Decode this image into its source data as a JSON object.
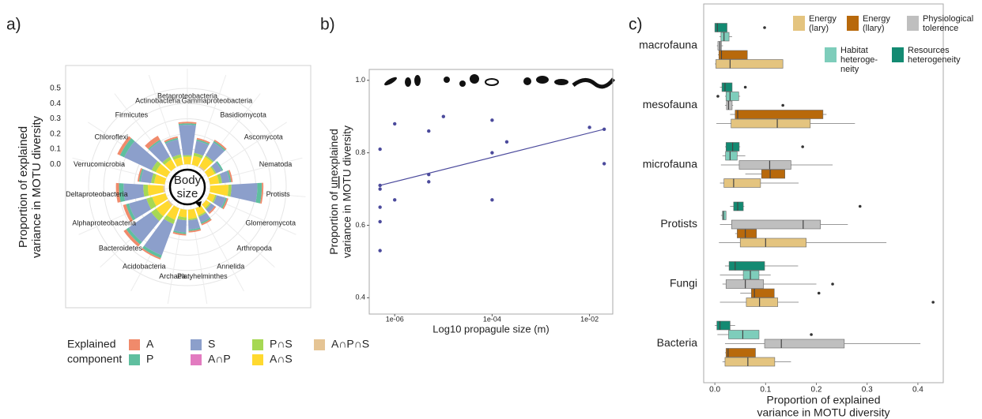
{
  "chart_data": [
    {
      "type": "polar_bar",
      "panel_label": "a)",
      "y_label": [
        "Proportion of explained",
        "variance in MOTU diversity"
      ],
      "center_label": [
        "Body",
        "size"
      ],
      "categories": [
        "Betaproteobacteria",
        "Gammaproteobacteria",
        "Basidiomycota",
        "Ascomycota",
        "Nematoda",
        "Protists",
        "Glomeromycota",
        "Arthropoda",
        "Annelida",
        "Platyhelminthes",
        "Archaea",
        "Acidobacteria",
        "Bacteroidetes",
        "Alphaproteobacteria",
        "Deltaproteobacteria",
        "Verrucomicrobia",
        "Chloroflexi",
        "Firmicutes",
        "Actinobacteria"
      ],
      "ylim": [
        -0.15,
        0.5
      ],
      "yticks": [
        {
          "value": 0,
          "label": "0.0"
        },
        0.1,
        0.2,
        0.3,
        0.4,
        0.5
      ],
      "legend_title": [
        "Explained",
        "component"
      ],
      "series": [
        {
          "name": "A",
          "color": "#f08a6b",
          "values": [
            0.01,
            0.01,
            0.01,
            0,
            0.01,
            0.01,
            0.01,
            0.01,
            0.01,
            0.01,
            0.01,
            0.01,
            0.02,
            0.02,
            0.02,
            0.01,
            0.02,
            0.03,
            0.01
          ]
        },
        {
          "name": "P",
          "color": "#5fbf9f",
          "values": [
            0.01,
            0.01,
            0.01,
            0.01,
            0.01,
            0.03,
            0.01,
            0,
            0.01,
            0.01,
            0.01,
            0.02,
            0.02,
            0.02,
            0.03,
            0.01,
            0.03,
            0.01,
            0.01
          ]
        },
        {
          "name": "S",
          "color": "#8c9fcb",
          "values": [
            0.2,
            0.08,
            0.1,
            0.04,
            0.05,
            0.17,
            0.06,
            0.03,
            0.04,
            0.06,
            0.08,
            0.22,
            0.18,
            0.12,
            0.13,
            0.07,
            0.2,
            0.12,
            0.1
          ]
        },
        {
          "name": "A∩P",
          "color": "#e27bc0",
          "values": [
            0,
            0,
            0,
            0,
            0,
            0,
            0,
            0,
            0,
            0,
            0,
            0,
            0,
            0,
            0,
            0,
            0,
            0,
            0
          ]
        },
        {
          "name": "P∩S",
          "color": "#a6d854",
          "values": [
            0.01,
            0.02,
            0.01,
            0.01,
            0.02,
            0.02,
            0.01,
            0.01,
            0.01,
            0.01,
            0.02,
            0.03,
            0.04,
            0.04,
            0.03,
            0.02,
            0.03,
            0.02,
            0.02
          ]
        },
        {
          "name": "A∩S",
          "color": "#ffd92f",
          "values": [
            0.05,
            0.06,
            0.07,
            0.05,
            0.06,
            0.12,
            0.04,
            0.03,
            0.05,
            0.06,
            0.05,
            0.08,
            0.09,
            0.09,
            0.1,
            0.07,
            0.08,
            0.06,
            0.05
          ]
        },
        {
          "name": "A∩P∩S",
          "color": "#e5c494",
          "values": [
            0,
            0,
            0.01,
            0,
            0,
            0,
            0,
            0,
            0,
            0,
            0,
            0,
            0.01,
            0,
            0.01,
            0,
            0,
            0,
            0
          ]
        }
      ]
    },
    {
      "type": "scatter",
      "panel_label": "b)",
      "x_label": "Log10 propagule size (m)",
      "y_label": {
        "before": "Proportion of ",
        "underlined": "un",
        "after": "explained",
        "line2": "variance in MOTU diversity"
      },
      "log_x": true,
      "color": "#4b4a9c",
      "x": [
        5e-07,
        5e-07,
        5e-07,
        5e-07,
        5e-07,
        5e-07,
        1e-06,
        1e-06,
        5e-06,
        5e-06,
        5e-06,
        1e-05,
        0.0001,
        0.0001,
        0.0001,
        0.0002,
        0.01,
        0.02,
        0.02
      ],
      "values": [
        0.81,
        0.71,
        0.7,
        0.65,
        0.61,
        0.53,
        0.67,
        0.88,
        0.74,
        0.72,
        0.86,
        0.9,
        0.89,
        0.8,
        0.67,
        0.83,
        0.87,
        0.865,
        0.77
      ],
      "fit": {
        "x": [
          5e-07,
          0.02
        ],
        "values": [
          0.71,
          0.865
        ]
      },
      "xlim": [
        3e-07,
        0.03
      ],
      "ylim": [
        0.355,
        1.03
      ],
      "xticks": [
        {
          "value": 1e-06,
          "label": "1e-06"
        },
        {
          "value": 0.0001,
          "label": "1e-04"
        },
        {
          "value": 0.01,
          "label": "1e-02"
        }
      ],
      "yticks": [
        0.4,
        0.6,
        0.8,
        {
          "value": 1,
          "label": "1.0"
        }
      ]
    },
    {
      "type": "boxplot",
      "panel_label": "c)",
      "x_label": [
        "Proportion of explained",
        "variance in MOTU diversity"
      ],
      "categories": [
        "macrofauna",
        "mesofauna",
        "microfauna",
        "Protists",
        "Fungi",
        "Bacteria"
      ],
      "xlim": [
        -0.022,
        0.45
      ],
      "xticks": [
        {
          "value": 0,
          "label": "0.0"
        },
        0.1,
        0.2,
        0.3,
        0.4
      ],
      "series": [
        {
          "name": [
            "Resources",
            "heterogeneity"
          ],
          "color": "#138a72",
          "boxes": [
            {
              "low": 0,
              "q1": 0,
              "median": 0.005,
              "q3": 0.024,
              "high": 0.024,
              "outliers": [
                0.098
              ]
            },
            {
              "low": 0.01,
              "q1": 0.014,
              "median": 0.02,
              "q3": 0.034,
              "high": 0.034,
              "outliers": [
                0.06
              ]
            },
            {
              "low": 0.02,
              "q1": 0.022,
              "median": 0.035,
              "q3": 0.048,
              "high": 0.05,
              "outliers": [
                0.173
              ]
            },
            {
              "low": 0.03,
              "q1": 0.037,
              "median": 0.045,
              "q3": 0.056,
              "high": 0.058,
              "outliers": [
                0.286
              ]
            },
            {
              "low": 0.02,
              "q1": 0.028,
              "median": 0.04,
              "q3": 0.098,
              "high": 0.164,
              "outliers": []
            },
            {
              "low": 0,
              "q1": 0.004,
              "median": 0.01,
              "q3": 0.03,
              "high": 0.04,
              "outliers": []
            }
          ]
        },
        {
          "name": [
            "Habitat",
            "heteroge-",
            "neity"
          ],
          "color": "#7ecdbb",
          "boxes": [
            {
              "low": 0.009,
              "q1": 0.012,
              "median": 0.018,
              "q3": 0.028,
              "high": 0.034,
              "outliers": []
            },
            {
              "low": 0.02,
              "q1": 0.022,
              "median": 0.03,
              "q3": 0.047,
              "high": 0.05,
              "outliers": [
                0.006
              ]
            },
            {
              "low": 0.015,
              "q1": 0.021,
              "median": 0.03,
              "q3": 0.044,
              "high": 0.06,
              "outliers": []
            },
            {
              "low": 0.012,
              "q1": 0.015,
              "median": 0.017,
              "q3": 0.022,
              "high": 0.022,
              "outliers": []
            },
            {
              "low": 0.01,
              "q1": 0.056,
              "median": 0.07,
              "q3": 0.087,
              "high": 0.11,
              "outliers": []
            },
            {
              "low": 0.005,
              "q1": 0.027,
              "median": 0.055,
              "q3": 0.087,
              "high": 0.087,
              "outliers": [
                0.19
              ]
            }
          ]
        },
        {
          "name": [
            "Physiological",
            "tolerence"
          ],
          "color": "#bfbfbf",
          "boxes": [
            {
              "low": 0.004,
              "q1": 0.006,
              "median": 0.01,
              "q3": 0.013,
              "high": 0.016,
              "outliers": []
            },
            {
              "low": 0.02,
              "q1": 0.023,
              "median": 0.027,
              "q3": 0.034,
              "high": 0.036,
              "outliers": [
                0.134
              ]
            },
            {
              "low": 0.012,
              "q1": 0.048,
              "median": 0.108,
              "q3": 0.15,
              "high": 0.232,
              "outliers": []
            },
            {
              "low": 0.01,
              "q1": 0.033,
              "median": 0.174,
              "q3": 0.208,
              "high": 0.262,
              "outliers": []
            },
            {
              "low": 0.015,
              "q1": 0.022,
              "median": 0.06,
              "q3": 0.096,
              "high": 0.2,
              "outliers": [
                0.232
              ]
            },
            {
              "low": 0.02,
              "q1": 0.098,
              "median": 0.131,
              "q3": 0.255,
              "high": 0.405,
              "outliers": []
            }
          ]
        },
        {
          "name": [
            "Energy",
            "(llary)"
          ],
          "color": "#b8690b",
          "boxes": [
            {
              "low": 0.006,
              "q1": 0.008,
              "median": 0.013,
              "q3": 0.064,
              "high": 0.064,
              "outliers": []
            },
            {
              "low": 0.03,
              "q1": 0.04,
              "median": 0.045,
              "q3": 0.213,
              "high": 0.22,
              "outliers": []
            },
            {
              "low": 0.06,
              "q1": 0.092,
              "median": 0.109,
              "q3": 0.138,
              "high": 0.138,
              "outliers": []
            },
            {
              "low": 0.04,
              "q1": 0.044,
              "median": 0.06,
              "q3": 0.082,
              "high": 0.082,
              "outliers": []
            },
            {
              "low": 0.05,
              "q1": 0.072,
              "median": 0.078,
              "q3": 0.117,
              "high": 0.117,
              "outliers": [
                0.205
              ]
            },
            {
              "low": 0.02,
              "q1": 0.022,
              "median": 0.026,
              "q3": 0.08,
              "high": 0.08,
              "outliers": []
            }
          ]
        },
        {
          "name": [
            "Energy",
            "(lary)"
          ],
          "color": "#e4c47f",
          "boxes": [
            {
              "low": 0,
              "q1": 0.002,
              "median": 0.03,
              "q3": 0.134,
              "high": 0.134,
              "outliers": []
            },
            {
              "low": 0.003,
              "q1": 0.032,
              "median": 0.123,
              "q3": 0.188,
              "high": 0.276,
              "outliers": []
            },
            {
              "low": 0.01,
              "q1": 0.018,
              "median": 0.037,
              "q3": 0.09,
              "high": 0.165,
              "outliers": []
            },
            {
              "low": 0.008,
              "q1": 0.05,
              "median": 0.1,
              "q3": 0.18,
              "high": 0.338,
              "outliers": []
            },
            {
              "low": 0.01,
              "q1": 0.062,
              "median": 0.088,
              "q3": 0.124,
              "high": 0.165,
              "outliers": [
                0.43
              ]
            },
            {
              "low": 0.015,
              "q1": 0.02,
              "median": 0.065,
              "q3": 0.118,
              "high": 0.15,
              "outliers": []
            }
          ]
        }
      ]
    }
  ]
}
